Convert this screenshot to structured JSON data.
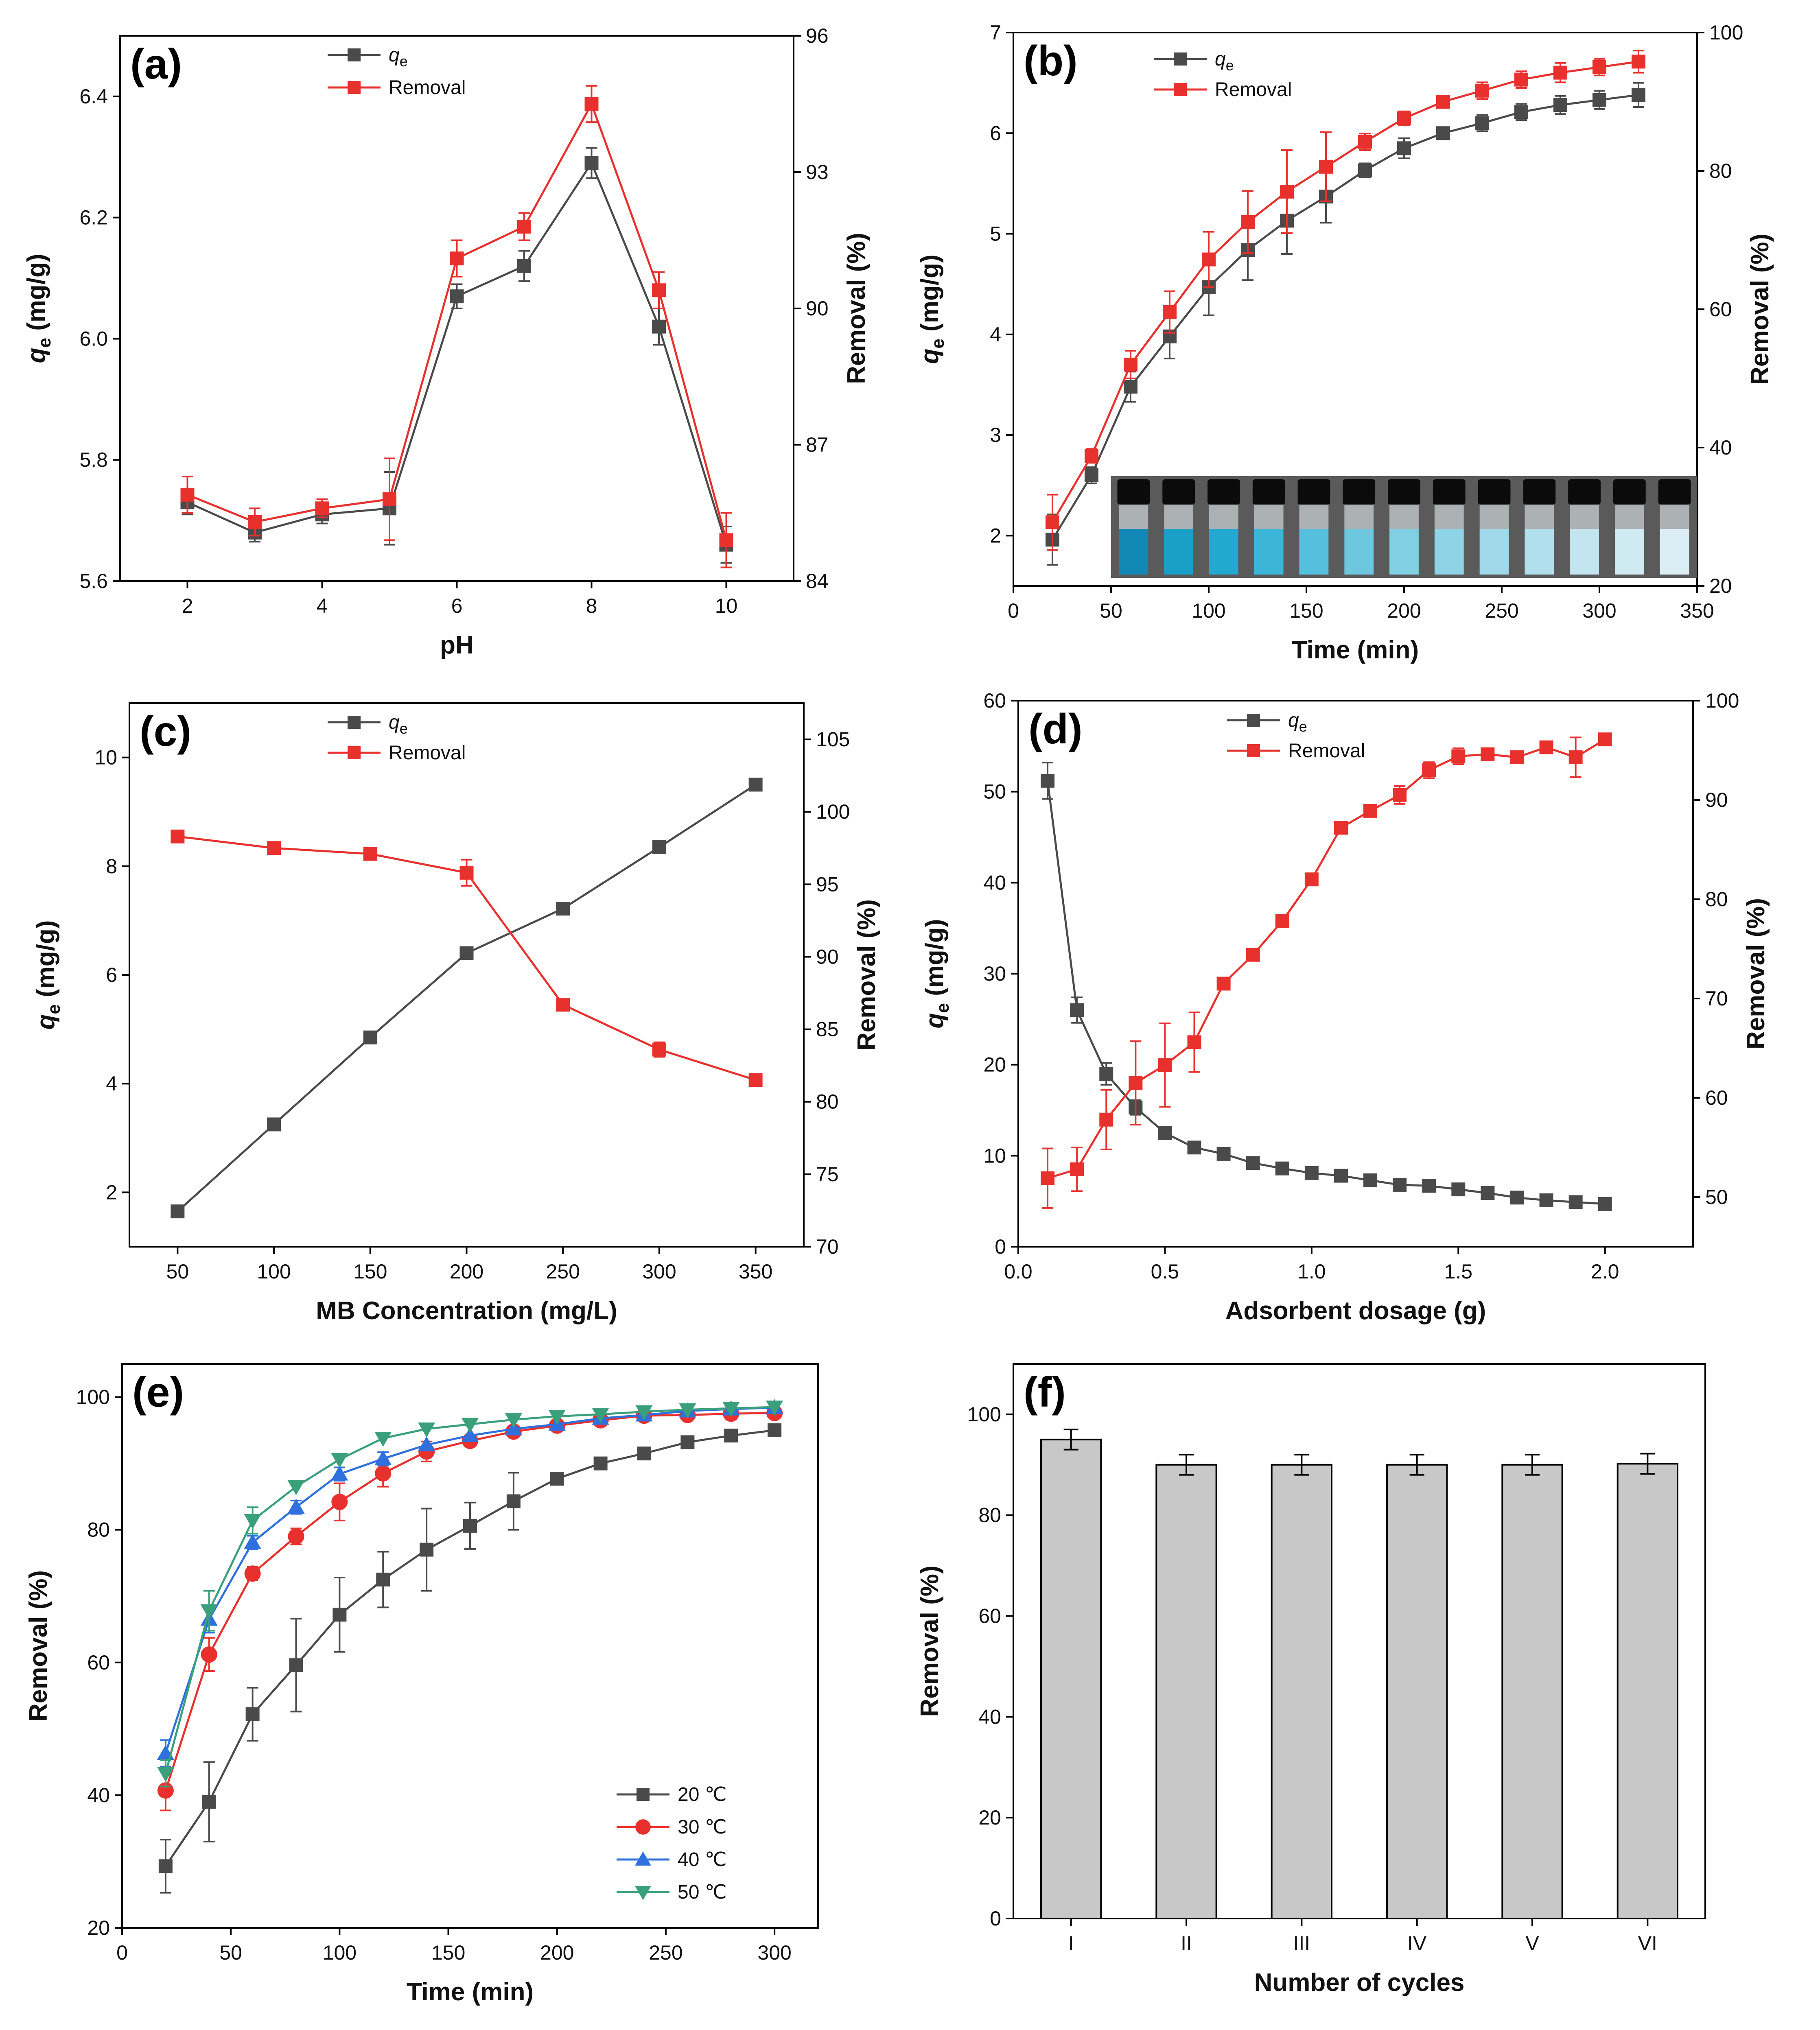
{
  "figure": {
    "title": ""
  },
  "charts": [
    {
      "id": "a",
      "label": "(a)",
      "type": "line",
      "dual_axis": true,
      "xlabel": "pH",
      "ylabel": "qe (mg/g)",
      "ylabel_main": "q",
      "ylabel_sub": "e",
      "ylabel_unit": " (mg/g)",
      "y2label": "Removal (%)",
      "xlim": [
        1,
        11
      ],
      "xticks": [
        2,
        4,
        6,
        8,
        10
      ],
      "ylim": [
        5.6,
        6.5
      ],
      "yticks": [
        5.6,
        5.8,
        6.0,
        6.2,
        6.4
      ],
      "ytick_decimals": 1,
      "y2lim": [
        84,
        96
      ],
      "y2ticks": [
        84,
        87,
        90,
        93,
        96
      ],
      "y2tick_decimals": 0,
      "legend": {
        "position": "top-center",
        "entries": [
          "qe",
          "Removal"
        ]
      },
      "series": [
        {
          "name": "qe",
          "axis": "left",
          "color": "#4a4a4a",
          "marker": "square",
          "x": [
            2,
            3,
            4,
            5,
            6,
            7,
            8,
            9,
            10
          ],
          "y": [
            5.73,
            5.68,
            5.71,
            5.72,
            6.07,
            6.12,
            6.29,
            6.02,
            5.66
          ],
          "err": [
            0.02,
            0.015,
            0.015,
            0.06,
            0.02,
            0.025,
            0.025,
            0.03,
            0.03
          ]
        },
        {
          "name": "Removal",
          "axis": "right",
          "color": "#e8302d",
          "marker": "square",
          "x": [
            2,
            3,
            4,
            5,
            6,
            7,
            8,
            9,
            10
          ],
          "y": [
            85.9,
            85.3,
            85.6,
            85.8,
            91.1,
            91.8,
            94.5,
            90.4,
            84.9
          ],
          "err": [
            0.4,
            0.3,
            0.2,
            0.9,
            0.4,
            0.3,
            0.4,
            0.4,
            0.6
          ]
        }
      ]
    },
    {
      "id": "b",
      "label": "(b)",
      "type": "line",
      "dual_axis": true,
      "xlabel": "Time (min)",
      "ylabel": "qe (mg/g)",
      "ylabel_main": "q",
      "ylabel_sub": "e",
      "ylabel_unit": " (mg/g)",
      "y2label": "Removal (%)",
      "xlim": [
        0,
        350
      ],
      "xticks": [
        0,
        50,
        100,
        150,
        200,
        250,
        300,
        350
      ],
      "ylim": [
        1.5,
        7
      ],
      "yticks": [
        2,
        3,
        4,
        5,
        6,
        7
      ],
      "ytick_decimals": 0,
      "y2lim": [
        20,
        100
      ],
      "y2ticks": [
        20,
        40,
        60,
        80,
        100
      ],
      "y2tick_decimals": 0,
      "legend": {
        "position": "top-left",
        "entries": [
          "qe",
          "Removal"
        ]
      },
      "inset_photo": "vial-photo",
      "series": [
        {
          "name": "qe",
          "axis": "left",
          "color": "#4a4a4a",
          "marker": "square",
          "x": [
            20,
            40,
            60,
            80,
            100,
            120,
            140,
            160,
            180,
            200,
            220,
            240,
            260,
            280,
            300,
            320
          ],
          "y": [
            1.96,
            2.6,
            3.48,
            3.98,
            4.47,
            4.84,
            5.13,
            5.37,
            5.63,
            5.85,
            6.0,
            6.1,
            6.21,
            6.28,
            6.33,
            6.38
          ],
          "err": [
            0.25,
            0.08,
            0.15,
            0.22,
            0.28,
            0.3,
            0.33,
            0.26,
            0.07,
            0.1,
            0.05,
            0.08,
            0.08,
            0.09,
            0.09,
            0.12
          ]
        },
        {
          "name": "Removal",
          "axis": "right",
          "color": "#e8302d",
          "marker": "square",
          "x": [
            20,
            40,
            60,
            80,
            100,
            120,
            140,
            160,
            180,
            200,
            220,
            240,
            260,
            280,
            300,
            320
          ],
          "y": [
            29.2,
            38.8,
            52.0,
            59.6,
            67.2,
            72.6,
            77.0,
            80.6,
            84.2,
            87.6,
            90.0,
            91.6,
            93.2,
            94.2,
            95.0,
            95.8
          ],
          "err": [
            4.0,
            1.0,
            2.0,
            3.0,
            4.0,
            4.5,
            6.0,
            5.0,
            1.2,
            1.0,
            0.6,
            1.2,
            1.2,
            1.4,
            1.2,
            1.6
          ]
        }
      ]
    },
    {
      "id": "c",
      "label": "(c)",
      "type": "line",
      "dual_axis": true,
      "xlabel": "MB Concentration (mg/L)",
      "ylabel": "qe (mg/g)",
      "ylabel_main": "q",
      "ylabel_sub": "e",
      "ylabel_unit": " (mg/g)",
      "y2label": "Removal (%)",
      "xlim": [
        25,
        375
      ],
      "xticks": [
        50,
        100,
        150,
        200,
        250,
        300,
        350
      ],
      "ylim": [
        1,
        11
      ],
      "yticks": [
        2,
        4,
        6,
        8,
        10
      ],
      "ytick_decimals": 0,
      "y2lim": [
        70,
        107.5
      ],
      "y2ticks": [
        70,
        75,
        80,
        85,
        90,
        95,
        100,
        105
      ],
      "y2tick_decimals": 0,
      "legend": {
        "position": "top-center",
        "entries": [
          "qe",
          "Removal"
        ]
      },
      "series": [
        {
          "name": "qe",
          "axis": "left",
          "color": "#4a4a4a",
          "marker": "square",
          "x": [
            50,
            100,
            150,
            200,
            250,
            300,
            350
          ],
          "y": [
            1.65,
            3.25,
            4.85,
            6.4,
            7.22,
            8.35,
            9.5
          ],
          "err": [
            0,
            0,
            0,
            0.1,
            0,
            0,
            0
          ]
        },
        {
          "name": "Removal",
          "axis": "right",
          "color": "#e8302d",
          "marker": "square",
          "x": [
            50,
            100,
            150,
            200,
            250,
            300,
            350
          ],
          "y": [
            98.3,
            97.5,
            97.1,
            95.8,
            86.7,
            83.6,
            81.5
          ],
          "err": [
            0,
            0,
            0,
            0.9,
            0,
            0.5,
            0
          ]
        }
      ]
    },
    {
      "id": "d",
      "label": "(d)",
      "type": "line",
      "dual_axis": true,
      "xlabel": "Adsorbent dosage (g)",
      "ylabel": "qe (mg/g)",
      "ylabel_main": "q",
      "ylabel_sub": "e",
      "ylabel_unit": " (mg/g)",
      "y2label": "Removal (%)",
      "xlim": [
        0,
        2.3
      ],
      "xticks": [
        0.0,
        0.5,
        1.0,
        1.5,
        2.0
      ],
      "xtick_decimals": 1,
      "ylim": [
        0,
        60
      ],
      "yticks": [
        0,
        10,
        20,
        30,
        40,
        50,
        60
      ],
      "ytick_decimals": 0,
      "y2lim": [
        45,
        100
      ],
      "y2ticks": [
        50,
        60,
        70,
        80,
        90,
        100
      ],
      "y2tick_decimals": 0,
      "legend": {
        "position": "top-center",
        "entries": [
          "qe",
          "Removal"
        ]
      },
      "series": [
        {
          "name": "qe",
          "axis": "left",
          "color": "#4a4a4a",
          "marker": "square",
          "x": [
            0.1,
            0.2,
            0.3,
            0.4,
            0.5,
            0.6,
            0.7,
            0.8,
            0.9,
            1.0,
            1.1,
            1.2,
            1.3,
            1.4,
            1.5,
            1.6,
            1.7,
            1.8,
            1.9,
            2.0
          ],
          "y": [
            51.2,
            26.0,
            19.0,
            15.3,
            12.5,
            10.9,
            10.2,
            9.2,
            8.6,
            8.1,
            7.8,
            7.3,
            6.8,
            6.7,
            6.3,
            5.9,
            5.4,
            5.1,
            4.9,
            4.7
          ],
          "err": [
            2.0,
            1.4,
            1.2,
            0.8,
            0.6,
            0,
            0,
            0,
            0,
            0,
            0,
            0,
            0,
            0,
            0,
            0,
            0,
            0,
            0,
            0
          ]
        },
        {
          "name": "Removal",
          "axis": "right",
          "color": "#e8302d",
          "marker": "square",
          "x": [
            0.1,
            0.2,
            0.3,
            0.4,
            0.5,
            0.6,
            0.7,
            0.8,
            0.9,
            1.0,
            1.1,
            1.2,
            1.3,
            1.4,
            1.5,
            1.6,
            1.7,
            1.8,
            1.9,
            2.0
          ],
          "y": [
            51.9,
            52.8,
            57.8,
            61.5,
            63.3,
            65.6,
            71.5,
            74.4,
            77.8,
            82.0,
            87.2,
            88.9,
            90.5,
            93.0,
            94.4,
            94.6,
            94.3,
            95.3,
            94.3,
            96.1
          ],
          "err": [
            3.0,
            2.2,
            3.0,
            4.2,
            4.2,
            3.0,
            0,
            0,
            0,
            0,
            0,
            0,
            0.9,
            0.8,
            0.8,
            0,
            0,
            0,
            2.0,
            0.5
          ]
        }
      ]
    },
    {
      "id": "e",
      "label": "(e)",
      "type": "line",
      "dual_axis": false,
      "xlabel": "Time (min)",
      "ylabel": "Removal (%)",
      "xlim": [
        0,
        320
      ],
      "xticks": [
        0,
        50,
        100,
        150,
        200,
        250,
        300
      ],
      "xtick_decimals": 0,
      "ylim": [
        20,
        105
      ],
      "yticks": [
        20,
        40,
        60,
        80,
        100
      ],
      "ytick_decimals": 0,
      "legend": {
        "position": "bottom-right",
        "entries": [
          "20 ℃",
          "30 ℃",
          "40 ℃",
          "50 ℃"
        ]
      },
      "series": [
        {
          "name": "20 ℃",
          "color": "#4a4a4a",
          "marker": "square",
          "x": [
            20,
            40,
            60,
            80,
            100,
            120,
            140,
            160,
            180,
            200,
            220,
            240,
            260,
            280,
            300
          ],
          "y": [
            29.3,
            39.0,
            52.2,
            59.6,
            67.2,
            72.5,
            77.0,
            80.6,
            84.3,
            87.7,
            90.0,
            91.5,
            93.2,
            94.2,
            95.0
          ],
          "err": [
            4.0,
            6.0,
            4.0,
            7.0,
            5.6,
            4.2,
            6.2,
            3.5,
            4.3,
            0,
            0,
            0,
            0,
            0,
            0
          ]
        },
        {
          "name": "30 ℃",
          "color": "#e8302d",
          "marker": "circle",
          "x": [
            20,
            40,
            60,
            80,
            100,
            120,
            140,
            160,
            180,
            200,
            220,
            240,
            260,
            280,
            300
          ],
          "y": [
            40.7,
            61.2,
            73.4,
            79.0,
            84.2,
            88.5,
            91.8,
            93.4,
            94.8,
            95.7,
            96.5,
            97.2,
            97.3,
            97.5,
            97.6
          ],
          "err": [
            3.0,
            2.5,
            1.0,
            1.2,
            2.8,
            2.0,
            1.5,
            0,
            0,
            0,
            0,
            0,
            0,
            0,
            0
          ]
        },
        {
          "name": "40 ℃",
          "color": "#2f6fde",
          "marker": "triangle-up",
          "x": [
            20,
            40,
            60,
            80,
            100,
            120,
            140,
            160,
            180,
            200,
            220,
            240,
            260,
            280,
            300
          ],
          "y": [
            46.3,
            66.5,
            78.1,
            83.4,
            88.4,
            90.7,
            92.8,
            94.2,
            95.2,
            95.9,
            96.8,
            97.3,
            97.9,
            98.2,
            98.4
          ],
          "err": [
            2.0,
            2.0,
            1.0,
            1.0,
            1.0,
            1.0,
            0,
            0,
            0,
            0,
            0,
            0,
            0,
            0,
            0
          ]
        },
        {
          "name": "50 ℃",
          "color": "#3aa07c",
          "marker": "triangle-down",
          "x": [
            20,
            40,
            60,
            80,
            100,
            120,
            140,
            160,
            180,
            200,
            220,
            240,
            260,
            280,
            300
          ],
          "y": [
            43.3,
            67.8,
            81.4,
            86.5,
            90.6,
            93.8,
            95.2,
            95.9,
            96.6,
            97.1,
            97.4,
            97.8,
            98.1,
            98.3,
            98.5
          ],
          "err": [
            2.0,
            3.0,
            2.0,
            0,
            0,
            0,
            0,
            0,
            0,
            0,
            0,
            0,
            0,
            0,
            0
          ]
        }
      ]
    },
    {
      "id": "f",
      "label": "(f)",
      "type": "bar",
      "dual_axis": false,
      "xlabel": "Number of cycles",
      "ylabel": "Removal (%)",
      "categories": [
        "I",
        "II",
        "III",
        "IV",
        "V",
        "VI"
      ],
      "values": [
        95.0,
        90.0,
        90.0,
        90.0,
        90.0,
        90.2
      ],
      "err": [
        2.0,
        2.0,
        2.0,
        2.0,
        2.0,
        2.0
      ],
      "bar_color": "#c8c8c8",
      "ylim": [
        0,
        110
      ],
      "yticks": [
        0,
        20,
        40,
        60,
        80,
        100
      ],
      "ytick_decimals": 0
    }
  ]
}
